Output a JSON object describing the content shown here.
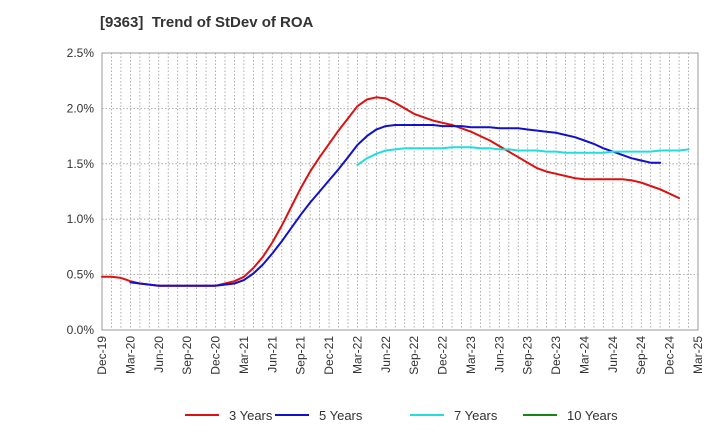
{
  "chart_data": {
    "type": "line",
    "title": "[9363]  Trend of StDev of ROA",
    "xlabel": "",
    "ylabel": "",
    "ylim": [
      0,
      2.5
    ],
    "y_ticks": [
      "0.0%",
      "0.5%",
      "1.0%",
      "1.5%",
      "2.0%",
      "2.5%"
    ],
    "x_ticks": [
      "Dec-19",
      "Mar-20",
      "Jun-20",
      "Sep-20",
      "Dec-20",
      "Mar-21",
      "Jun-21",
      "Sep-21",
      "Dec-21",
      "Mar-22",
      "Jun-22",
      "Sep-22",
      "Dec-22",
      "Mar-23",
      "Jun-23",
      "Sep-23",
      "Dec-23",
      "Mar-24",
      "Jun-24",
      "Sep-24",
      "Dec-24",
      "Mar-25"
    ],
    "x_months": [
      "Dec-19",
      "Jan-20",
      "Feb-20",
      "Mar-20",
      "Apr-20",
      "May-20",
      "Jun-20",
      "Jul-20",
      "Aug-20",
      "Sep-20",
      "Oct-20",
      "Nov-20",
      "Dec-20",
      "Jan-21",
      "Feb-21",
      "Mar-21",
      "Apr-21",
      "May-21",
      "Jun-21",
      "Jul-21",
      "Aug-21",
      "Sep-21",
      "Oct-21",
      "Nov-21",
      "Dec-21",
      "Jan-22",
      "Feb-22",
      "Mar-22",
      "Apr-22",
      "May-22",
      "Jun-22",
      "Jul-22",
      "Aug-22",
      "Sep-22",
      "Oct-22",
      "Nov-22",
      "Dec-22",
      "Jan-23",
      "Feb-23",
      "Mar-23",
      "Apr-23",
      "May-23",
      "Jun-23",
      "Jul-23",
      "Aug-23",
      "Sep-23",
      "Oct-23",
      "Nov-23",
      "Dec-23",
      "Jan-24",
      "Feb-24",
      "Mar-24",
      "Apr-24",
      "May-24",
      "Jun-24",
      "Jul-24",
      "Aug-24",
      "Sep-24",
      "Oct-24",
      "Nov-24",
      "Dec-24",
      "Jan-25",
      "Feb-25",
      "Mar-25"
    ],
    "grid": true,
    "legend_position": "bottom",
    "series": [
      {
        "name": "3 Years",
        "color": "#dd1111",
        "start": "Dec-19",
        "values": [
          0.48,
          0.48,
          0.47,
          0.44,
          0.42,
          0.41,
          0.4,
          0.4,
          0.4,
          0.4,
          0.4,
          0.4,
          0.4,
          0.42,
          0.44,
          0.48,
          0.56,
          0.66,
          0.79,
          0.94,
          1.11,
          1.28,
          1.43,
          1.56,
          1.68,
          1.8,
          1.91,
          2.02,
          2.08,
          2.1,
          2.09,
          2.05,
          2.0,
          1.95,
          1.92,
          1.89,
          1.87,
          1.85,
          1.82,
          1.79,
          1.75,
          1.71,
          1.66,
          1.61,
          1.56,
          1.51,
          1.46,
          1.43,
          1.41,
          1.39,
          1.37,
          1.36,
          1.36,
          1.36,
          1.36,
          1.36,
          1.35,
          1.33,
          1.3,
          1.27,
          1.23,
          1.19
        ]
      },
      {
        "name": "5 Years",
        "color": "#1111cc",
        "start": "Mar-20",
        "values": [
          0.43,
          0.42,
          0.41,
          0.4,
          0.4,
          0.4,
          0.4,
          0.4,
          0.4,
          0.4,
          0.41,
          0.42,
          0.45,
          0.51,
          0.59,
          0.69,
          0.8,
          0.92,
          1.04,
          1.15,
          1.25,
          1.35,
          1.45,
          1.56,
          1.67,
          1.75,
          1.81,
          1.84,
          1.85,
          1.85,
          1.85,
          1.85,
          1.85,
          1.84,
          1.84,
          1.84,
          1.83,
          1.83,
          1.83,
          1.82,
          1.82,
          1.82,
          1.81,
          1.8,
          1.79,
          1.78,
          1.76,
          1.74,
          1.71,
          1.68,
          1.64,
          1.61,
          1.58,
          1.55,
          1.53,
          1.51,
          1.51
        ]
      },
      {
        "name": "7 Years",
        "color": "#22dddd",
        "start": "Mar-22",
        "values": [
          1.49,
          1.55,
          1.59,
          1.62,
          1.63,
          1.64,
          1.64,
          1.64,
          1.64,
          1.64,
          1.65,
          1.65,
          1.65,
          1.64,
          1.64,
          1.63,
          1.63,
          1.62,
          1.62,
          1.62,
          1.61,
          1.61,
          1.6,
          1.6,
          1.6,
          1.6,
          1.6,
          1.61,
          1.61,
          1.61,
          1.61,
          1.61,
          1.62,
          1.62,
          1.62,
          1.63
        ]
      },
      {
        "name": "10 Years",
        "color": "#118811",
        "start": "Dec-24",
        "values": []
      }
    ]
  }
}
